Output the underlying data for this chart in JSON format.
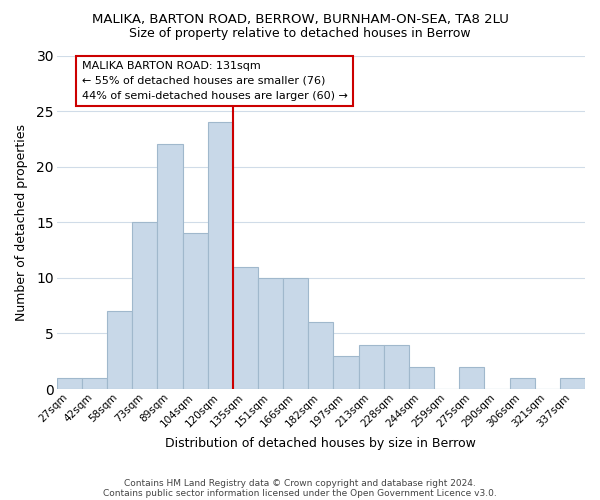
{
  "title": "MALIKA, BARTON ROAD, BERROW, BURNHAM-ON-SEA, TA8 2LU",
  "subtitle": "Size of property relative to detached houses in Berrow",
  "xlabel": "Distribution of detached houses by size in Berrow",
  "ylabel": "Number of detached properties",
  "bar_labels": [
    "27sqm",
    "42sqm",
    "58sqm",
    "73sqm",
    "89sqm",
    "104sqm",
    "120sqm",
    "135sqm",
    "151sqm",
    "166sqm",
    "182sqm",
    "197sqm",
    "213sqm",
    "228sqm",
    "244sqm",
    "259sqm",
    "275sqm",
    "290sqm",
    "306sqm",
    "321sqm",
    "337sqm"
  ],
  "bar_values": [
    1,
    1,
    7,
    15,
    22,
    14,
    24,
    11,
    10,
    10,
    6,
    3,
    4,
    4,
    2,
    0,
    2,
    0,
    1,
    0,
    1
  ],
  "bar_color": "#c8d8e8",
  "bar_edge_color": "#a0b8cc",
  "property_line_index": 6.5,
  "property_line_color": "#cc0000",
  "ylim": [
    0,
    30
  ],
  "yticks": [
    0,
    5,
    10,
    15,
    20,
    25,
    30
  ],
  "annotation_title": "MALIKA BARTON ROAD: 131sqm",
  "annotation_line1": "← 55% of detached houses are smaller (76)",
  "annotation_line2": "44% of semi-detached houses are larger (60) →",
  "annotation_box_color": "#ffffff",
  "annotation_box_edge": "#cc0000",
  "footer1": "Contains HM Land Registry data © Crown copyright and database right 2024.",
  "footer2": "Contains public sector information licensed under the Open Government Licence v3.0.",
  "background_color": "#ffffff",
  "grid_color": "#d0dce8"
}
